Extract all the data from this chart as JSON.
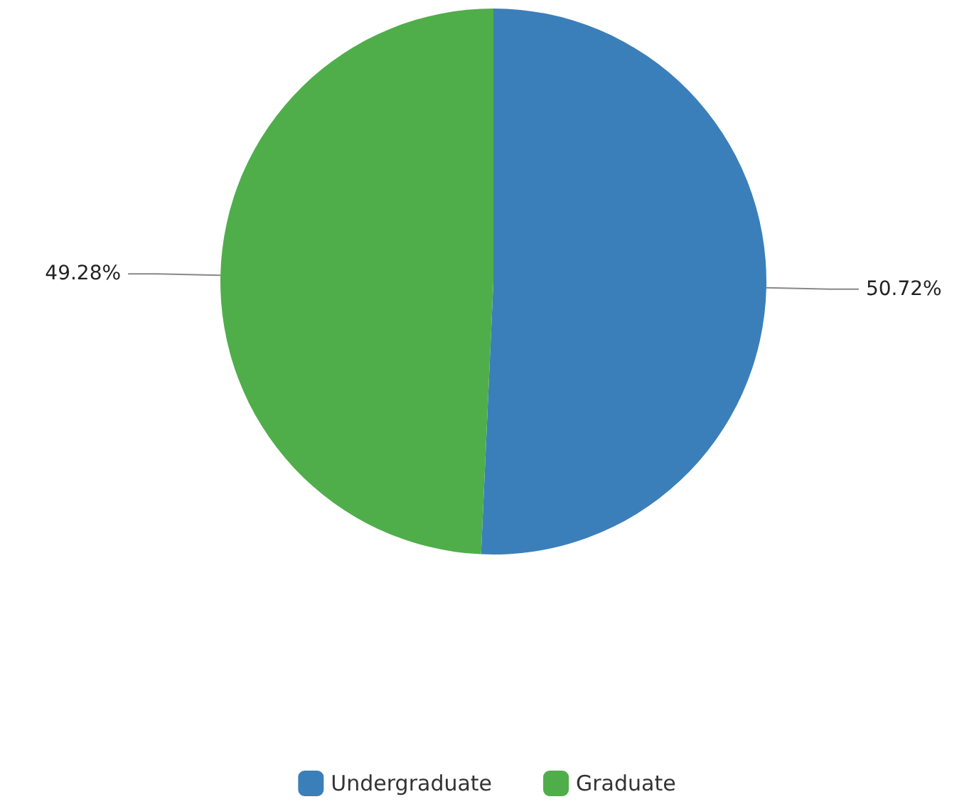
{
  "chart_data": {
    "type": "pie",
    "categories": [
      "Undergraduate",
      "Graduate"
    ],
    "values": [
      50.72,
      49.28
    ],
    "value_labels": [
      "50.72%",
      "49.28%"
    ],
    "colors": [
      "#3a7fba",
      "#4fae4a"
    ],
    "legend": "bottom"
  }
}
